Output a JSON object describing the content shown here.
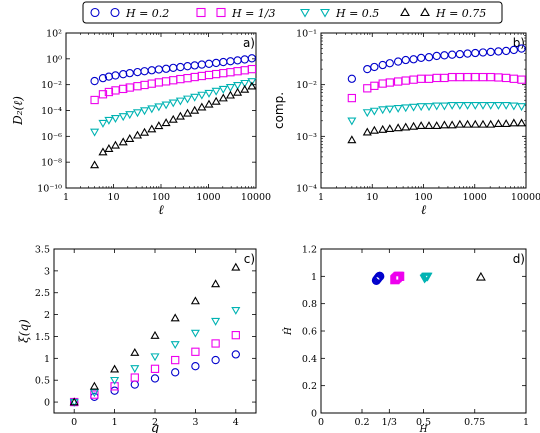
{
  "legend": [
    {
      "label": "H = 0.2",
      "marker": "circle",
      "color": "#0000cc"
    },
    {
      "label": "H = 1/3",
      "marker": "square",
      "color": "#ee00ee"
    },
    {
      "label": "H = 0.5",
      "marker": "triangle-down",
      "color": "#00b3b3"
    },
    {
      "label": "H = 0.75",
      "marker": "triangle-up",
      "color": "#000000"
    }
  ],
  "chart_data": [
    {
      "type": "scatter",
      "panel_label": "a)",
      "xlabel": "ℓ",
      "ylabel": "D₂(ℓ)",
      "xscale": "log",
      "yscale": "log",
      "xlim": [
        1,
        10000
      ],
      "ylim": [
        1e-10,
        100
      ],
      "x_ticks": [
        1,
        10,
        100,
        1000,
        10000
      ],
      "x_tick_labels": [
        "1",
        "10",
        "100",
        "1000",
        "10000"
      ],
      "y_ticks": [
        1e-10,
        1e-08,
        1e-06,
        0.0001,
        0.01,
        1,
        100
      ],
      "y_tick_labels": [
        "10⁻¹⁰",
        "10⁻⁸",
        "10⁻⁶",
        "10⁻⁴",
        "10⁻²",
        "10⁰",
        "10²"
      ],
      "x": [
        4,
        6,
        8,
        11,
        16,
        22,
        32,
        45,
        64,
        90,
        128,
        181,
        256,
        362,
        512,
        724,
        1024,
        1448,
        2048,
        2896,
        4096,
        5792,
        8192
      ],
      "series": [
        {
          "name": "H = 0.2",
          "marker": "circle",
          "color": "#0000cc",
          "values": [
            0.019,
            0.032,
            0.042,
            0.052,
            0.065,
            0.078,
            0.094,
            0.11,
            0.13,
            0.15,
            0.17,
            0.2,
            0.23,
            0.27,
            0.31,
            0.36,
            0.41,
            0.48,
            0.56,
            0.65,
            0.76,
            0.9,
            1.1
          ]
        },
        {
          "name": "H = 1/3",
          "marker": "square",
          "color": "#ee00ee",
          "values": [
            0.00065,
            0.0018,
            0.0027,
            0.0036,
            0.0047,
            0.006,
            0.0076,
            0.0095,
            0.012,
            0.015,
            0.018,
            0.022,
            0.027,
            0.032,
            0.039,
            0.047,
            0.056,
            0.066,
            0.078,
            0.092,
            0.11,
            0.13,
            0.16
          ]
        },
        {
          "name": "H = 0.5",
          "marker": "triangle-down",
          "color": "#00b3b3",
          "values": [
            2.2e-06,
            1.05e-05,
            1.8e-05,
            2.5e-05,
            3.5e-05,
            5e-05,
            7e-05,
            0.0001,
            0.00014,
            0.0002,
            0.00028,
            0.0004,
            0.00056,
            0.0008,
            0.0011,
            0.0016,
            0.0022,
            0.0032,
            0.0045,
            0.0063,
            0.009,
            0.013,
            0.018
          ]
        },
        {
          "name": "H = 0.75",
          "marker": "triangle-up",
          "color": "#000000",
          "values": [
            6e-09,
            6e-08,
            1.1e-07,
            2e-07,
            3.6e-07,
            6.5e-07,
            1.2e-06,
            2e-06,
            3.6e-06,
            6.5e-06,
            1.1e-05,
            2e-05,
            3.5e-05,
            6e-05,
            0.0001,
            0.00018,
            0.0003,
            0.0005,
            0.0009,
            0.0015,
            0.0025,
            0.0042,
            0.0075
          ]
        }
      ]
    },
    {
      "type": "scatter",
      "panel_label": "b)",
      "xlabel": "ℓ",
      "ylabel": "comp.",
      "xscale": "log",
      "yscale": "log",
      "xlim": [
        1,
        10000
      ],
      "ylim": [
        0.0001,
        0.1
      ],
      "x_ticks": [
        1,
        10,
        100,
        1000,
        10000
      ],
      "x_tick_labels": [
        "1",
        "10",
        "100",
        "1000",
        "10000"
      ],
      "y_ticks": [
        0.0001,
        0.001,
        0.01,
        0.1
      ],
      "y_tick_labels": [
        "10⁻⁴",
        "10⁻³",
        "10⁻²",
        "10⁻¹"
      ],
      "x": [
        4,
        8,
        11,
        16,
        22,
        32,
        45,
        64,
        90,
        128,
        181,
        256,
        362,
        512,
        724,
        1024,
        1448,
        2048,
        2896,
        4096,
        5792,
        8192
      ],
      "series": [
        {
          "name": "H = 0.2",
          "marker": "circle",
          "color": "#0000cc",
          "values": [
            0.013,
            0.02,
            0.022,
            0.024,
            0.026,
            0.028,
            0.03,
            0.031,
            0.033,
            0.034,
            0.036,
            0.037,
            0.038,
            0.039,
            0.04,
            0.041,
            0.042,
            0.043,
            0.044,
            0.045,
            0.047,
            0.05
          ]
        },
        {
          "name": "H = 1/3",
          "marker": "square",
          "color": "#ee00ee",
          "values": [
            0.0055,
            0.0085,
            0.0095,
            0.0105,
            0.011,
            0.0115,
            0.012,
            0.0125,
            0.013,
            0.013,
            0.0135,
            0.0135,
            0.014,
            0.014,
            0.014,
            0.014,
            0.014,
            0.014,
            0.0138,
            0.0135,
            0.013,
            0.0125
          ]
        },
        {
          "name": "H = 0.5",
          "marker": "triangle-down",
          "color": "#00b3b3",
          "values": [
            0.002,
            0.0029,
            0.0031,
            0.0033,
            0.0034,
            0.0035,
            0.0036,
            0.0037,
            0.0038,
            0.0038,
            0.0039,
            0.0039,
            0.004,
            0.004,
            0.004,
            0.004,
            0.004,
            0.004,
            0.004,
            0.004,
            0.0039,
            0.0038
          ]
        },
        {
          "name": "H = 0.75",
          "marker": "triangle-up",
          "color": "#000000",
          "values": [
            0.00085,
            0.0012,
            0.0013,
            0.00135,
            0.0014,
            0.00145,
            0.0015,
            0.00155,
            0.0016,
            0.0016,
            0.0016,
            0.00165,
            0.00165,
            0.0017,
            0.0017,
            0.0017,
            0.0017,
            0.0017,
            0.00175,
            0.00175,
            0.0018,
            0.0018
          ]
        }
      ]
    },
    {
      "type": "scatter",
      "panel_label": "c)",
      "xlabel": "q",
      "ylabel": "ξ(q)",
      "xlim": [
        -0.5,
        4.5
      ],
      "ylim": [
        -0.25,
        3.5
      ],
      "x_ticks": [
        0,
        1,
        2,
        3,
        4
      ],
      "x_tick_labels": [
        "0",
        "1",
        "2",
        "3",
        "4"
      ],
      "y_ticks": [
        0,
        0.5,
        1,
        1.5,
        2,
        2.5,
        3,
        3.5
      ],
      "y_tick_labels": [
        "0",
        "0.5",
        "1",
        "1.5",
        "2",
        "2.5",
        "3",
        "3.5"
      ],
      "x": [
        0,
        0.5,
        1,
        1.5,
        2,
        2.5,
        3,
        3.5,
        4
      ],
      "series": [
        {
          "name": "H = 0.2",
          "marker": "circle",
          "color": "#0000cc",
          "values": [
            0.0,
            0.12,
            0.26,
            0.4,
            0.54,
            0.68,
            0.82,
            0.96,
            1.09
          ]
        },
        {
          "name": "H = 1/3",
          "marker": "square",
          "color": "#ee00ee",
          "values": [
            0.0,
            0.17,
            0.36,
            0.56,
            0.76,
            0.96,
            1.15,
            1.34,
            1.53
          ]
        },
        {
          "name": "H = 0.5",
          "marker": "triangle-down",
          "color": "#00b3b3",
          "values": [
            0.0,
            0.22,
            0.5,
            0.77,
            1.04,
            1.32,
            1.58,
            1.85,
            2.1
          ]
        },
        {
          "name": "H = 0.75",
          "marker": "triangle-up",
          "color": "#000000",
          "values": [
            0.0,
            0.36,
            0.75,
            1.13,
            1.52,
            1.92,
            2.31,
            2.7,
            3.08
          ]
        }
      ]
    },
    {
      "type": "scatter",
      "panel_label": "d)",
      "xlabel": "H",
      "ylabel": "Ĥ",
      "xlim": [
        0,
        1
      ],
      "ylim": [
        0,
        1.2
      ],
      "x_ticks": [
        0,
        0.2,
        0.3333,
        0.5,
        0.75,
        1
      ],
      "x_tick_labels": [
        "0",
        "0.2",
        "1/3",
        "0.5",
        "0.75",
        "1"
      ],
      "y_ticks": [
        0,
        0.2,
        0.4,
        0.6,
        0.8,
        1,
        1.2
      ],
      "y_tick_labels": [
        "0",
        "0.2",
        "0.4",
        "0.6",
        "0.8",
        "1",
        "1.2"
      ],
      "series": [
        {
          "name": "H = 0.2",
          "marker": "circle",
          "color": "#0000cc",
          "x": [
            0.27,
            0.272,
            0.275,
            0.277,
            0.28,
            0.282,
            0.285,
            0.287
          ],
          "values": [
            0.97,
            0.975,
            0.98,
            0.985,
            0.99,
            0.995,
            1.0,
            1.0
          ]
        },
        {
          "name": "H = 1/3",
          "marker": "square",
          "color": "#ee00ee",
          "x": [
            0.36,
            0.363,
            0.366,
            0.37,
            0.373,
            0.377,
            0.38,
            0.384
          ],
          "values": [
            0.975,
            0.98,
            0.985,
            0.99,
            0.995,
            1.0,
            1.0,
            1.0
          ]
        },
        {
          "name": "H = 0.5",
          "marker": "triangle-down",
          "color": "#00b3b3",
          "x": [
            0.505,
            0.508,
            0.511,
            0.514,
            0.517,
            0.52
          ],
          "values": [
            0.985,
            0.99,
            0.995,
            1.0,
            1.0,
            1.0
          ]
        },
        {
          "name": "H = 0.75",
          "marker": "triangle-up",
          "color": "#000000",
          "x": [
            0.78
          ],
          "values": [
            0.995
          ]
        }
      ]
    }
  ]
}
